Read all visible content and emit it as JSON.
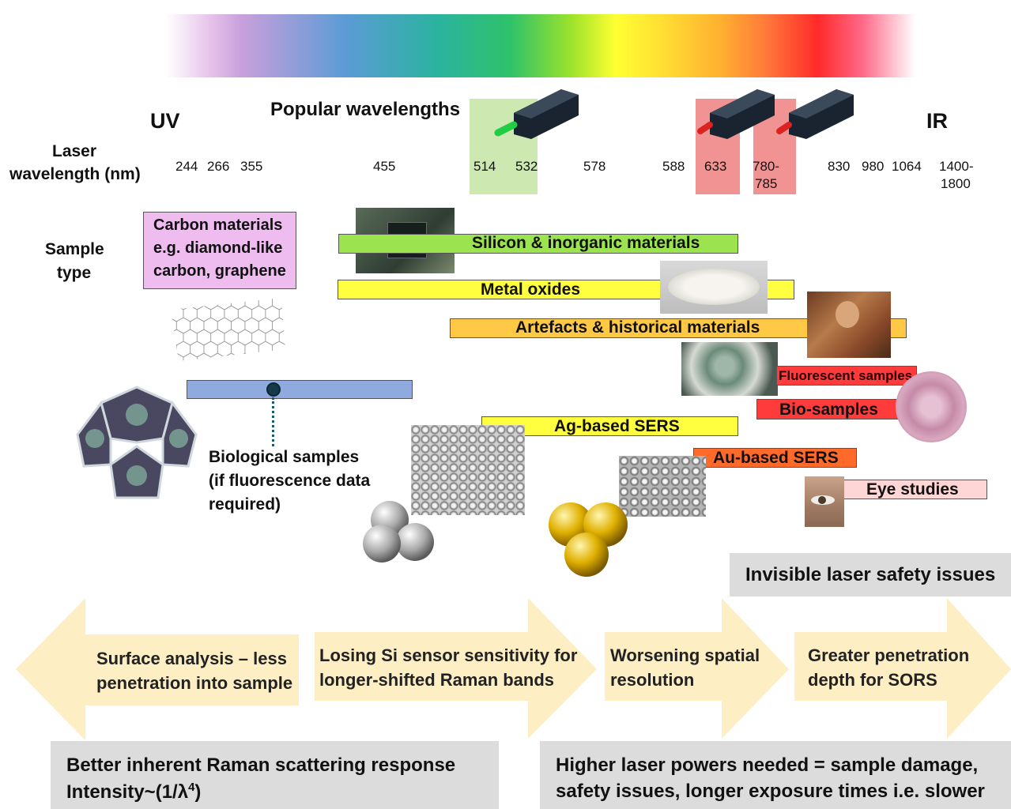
{
  "header": {
    "uv": "UV",
    "ir": "IR",
    "popular": "Popular wavelengths",
    "laser_label_line1": "Laser",
    "laser_label_line2": "wavelength (nm)"
  },
  "wavelengths": [
    "244",
    "266",
    "355",
    "455",
    "514",
    "532",
    "578",
    "588",
    "633",
    "780-",
    "785",
    "830",
    "980",
    "1064",
    "1400-",
    "1800"
  ],
  "sample_label_line1": "Sample",
  "sample_label_line2": "type",
  "samples": {
    "carbon_line1": "Carbon materials",
    "carbon_line2": "e.g. diamond-like",
    "carbon_line3": "carbon, graphene",
    "silicon": "Silicon & inorganic materials",
    "metal_oxides": "Metal oxides",
    "artefacts": "Artefacts & historical materials",
    "fluorescent": "Fluorescent samples",
    "bio": "Bio-samples",
    "ag_sers": "Ag-based SERS",
    "au_sers": "Au-based SERS",
    "eye": "Eye studies",
    "biological_line1": "Biological samples",
    "biological_line2": "(if fluorescence data",
    "biological_line3": "required)"
  },
  "invisible_safety": "Invisible laser safety issues",
  "arrows": {
    "a1_line1": "Surface analysis – less",
    "a1_line2": "penetration into sample",
    "a2_line1": "Losing Si sensor sensitivity for",
    "a2_line2": "longer-shifted Raman bands",
    "a3_line1": "Worsening spatial",
    "a3_line2": "resolution",
    "a4_line1": "Greater penetration",
    "a4_line2": "depth for SORS"
  },
  "bottom": {
    "left_line1": "Better inherent Raman scattering response",
    "left_line2_prefix": "Intensity~(1/λ",
    "left_line2_sup": "4",
    "left_line2_suffix": ")",
    "right_line1": "Higher laser powers needed = sample damage,",
    "right_line2": "safety issues, longer exposure times i.e. slower"
  },
  "colors": {
    "green_band": "#cde8b0",
    "red_band": "#f08080",
    "silicon_bar": "#9be34f",
    "yellow_bar": "#ffff40",
    "orange_bar": "#ffc845",
    "red_bar": "#ff3b3b",
    "au_bar": "#ff6a2a",
    "eye_bar": "#ffd6d6",
    "carbon_box": "#eebcef",
    "bio_bar": "#8eaadf"
  }
}
